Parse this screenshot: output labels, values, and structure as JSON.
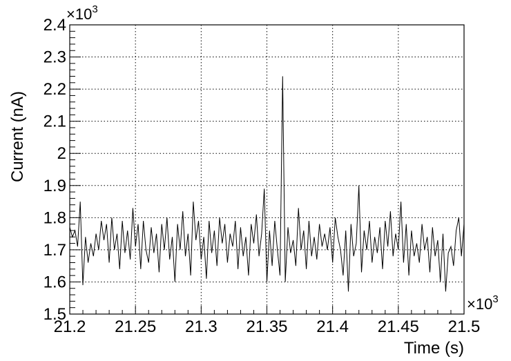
{
  "chart_data": {
    "type": "line",
    "title": "",
    "xlabel": "Time (s)",
    "ylabel": "Current (nA)",
    "x_multiplier_label": "×10",
    "x_multiplier_exp": "3",
    "y_multiplier_label": "×10",
    "y_multiplier_exp": "3",
    "xlim": [
      21.2,
      21.5
    ],
    "ylim": [
      1.5,
      2.4
    ],
    "x_ticks": [
      21.2,
      21.25,
      21.3,
      21.35,
      21.4,
      21.45,
      21.5
    ],
    "x_tick_labels": [
      "21.2",
      "21.25",
      "21.3",
      "21.35",
      "21.4",
      "21.45",
      "21.5"
    ],
    "y_ticks": [
      1.5,
      1.6,
      1.7,
      1.8,
      1.9,
      2.0,
      2.1,
      2.2,
      2.3,
      2.4
    ],
    "y_tick_labels": [
      "1.5",
      "1.6",
      "1.7",
      "1.8",
      "1.9",
      "2",
      "2.1",
      "2.2",
      "2.3",
      "2.4"
    ],
    "grid": true,
    "series": [
      {
        "x": [
          21.2,
          21.202,
          21.204,
          21.206,
          21.208,
          21.21,
          21.212,
          21.214,
          21.216,
          21.218,
          21.22,
          21.222,
          21.224,
          21.226,
          21.228,
          21.23,
          21.232,
          21.234,
          21.236,
          21.238,
          21.24,
          21.242,
          21.244,
          21.246,
          21.248,
          21.25,
          21.252,
          21.254,
          21.256,
          21.258,
          21.26,
          21.262,
          21.264,
          21.266,
          21.268,
          21.27,
          21.272,
          21.274,
          21.276,
          21.278,
          21.28,
          21.282,
          21.284,
          21.286,
          21.288,
          21.29,
          21.292,
          21.294,
          21.296,
          21.298,
          21.3,
          21.302,
          21.304,
          21.306,
          21.308,
          21.31,
          21.312,
          21.314,
          21.316,
          21.318,
          21.32,
          21.322,
          21.324,
          21.326,
          21.328,
          21.33,
          21.332,
          21.334,
          21.336,
          21.338,
          21.34,
          21.342,
          21.344,
          21.346,
          21.348,
          21.35,
          21.352,
          21.354,
          21.356,
          21.358,
          21.36,
          21.362,
          21.364,
          21.366,
          21.368,
          21.37,
          21.372,
          21.374,
          21.376,
          21.378,
          21.38,
          21.382,
          21.384,
          21.386,
          21.388,
          21.39,
          21.392,
          21.394,
          21.396,
          21.398,
          21.4,
          21.402,
          21.404,
          21.406,
          21.408,
          21.41,
          21.412,
          21.414,
          21.416,
          21.418,
          21.42,
          21.422,
          21.424,
          21.426,
          21.428,
          21.43,
          21.432,
          21.434,
          21.436,
          21.438,
          21.44,
          21.442,
          21.444,
          21.446,
          21.448,
          21.45,
          21.452,
          21.454,
          21.456,
          21.458,
          21.46,
          21.462,
          21.464,
          21.466,
          21.468,
          21.47,
          21.472,
          21.474,
          21.476,
          21.478,
          21.48,
          21.482,
          21.484,
          21.486,
          21.488,
          21.49,
          21.492,
          21.494,
          21.496,
          21.498,
          21.5
        ],
        "y": [
          1.77,
          1.74,
          1.76,
          1.71,
          1.85,
          1.59,
          1.74,
          1.66,
          1.72,
          1.68,
          1.75,
          1.7,
          1.79,
          1.73,
          1.78,
          1.66,
          1.8,
          1.7,
          1.75,
          1.64,
          1.79,
          1.69,
          1.76,
          1.67,
          1.83,
          1.71,
          1.78,
          1.64,
          1.79,
          1.7,
          1.66,
          1.77,
          1.69,
          1.75,
          1.63,
          1.78,
          1.7,
          1.8,
          1.67,
          1.74,
          1.6,
          1.78,
          1.7,
          1.82,
          1.68,
          1.75,
          1.62,
          1.85,
          1.73,
          1.79,
          1.67,
          1.74,
          1.61,
          1.79,
          1.69,
          1.76,
          1.65,
          1.8,
          1.72,
          1.78,
          1.66,
          1.75,
          1.71,
          1.79,
          1.64,
          1.77,
          1.68,
          1.74,
          1.62,
          1.78,
          1.72,
          1.81,
          1.68,
          1.75,
          1.89,
          1.6,
          1.76,
          1.65,
          1.79,
          1.7,
          1.62,
          2.24,
          1.6,
          1.77,
          1.69,
          1.73,
          1.65,
          1.83,
          1.7,
          1.76,
          1.64,
          1.79,
          1.68,
          1.74,
          1.67,
          1.78,
          1.71,
          1.75,
          1.7,
          1.77,
          1.66,
          1.8,
          1.74,
          1.7,
          1.62,
          1.76,
          1.57,
          1.78,
          1.68,
          1.72,
          1.9,
          1.63,
          1.76,
          1.7,
          1.79,
          1.66,
          1.74,
          1.69,
          1.77,
          1.64,
          1.79,
          1.71,
          1.82,
          1.68,
          1.75,
          1.7,
          1.85,
          1.66,
          1.78,
          1.62,
          1.76,
          1.68,
          1.72,
          1.66,
          1.78,
          1.7,
          1.74,
          1.63,
          1.77,
          1.68,
          1.73,
          1.6,
          1.75,
          1.57,
          1.69,
          1.71,
          1.65,
          1.76,
          1.8,
          1.68,
          1.78
        ]
      }
    ]
  }
}
